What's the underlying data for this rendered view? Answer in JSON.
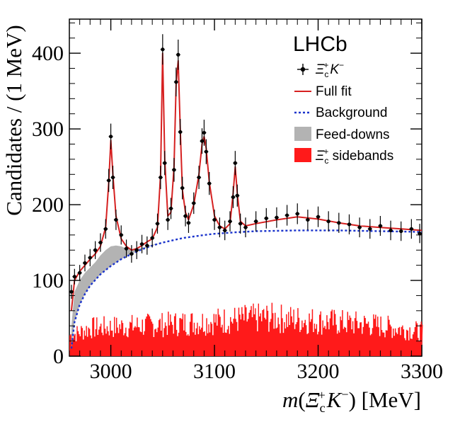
{
  "chart_data": {
    "type": "line",
    "experiment_label": "LHCb",
    "xlabel": "m(Ξ_c^+ K^−) [MeV]",
    "xlabel_parts": [
      "m(",
      "Ξ",
      "c",
      "+",
      "K",
      "−",
      ") [MeV]"
    ],
    "ylabel": "Candidates / (1 MeV)",
    "xlim": [
      2960,
      3300
    ],
    "ylim": [
      0,
      445
    ],
    "xticks": [
      3000,
      3100,
      3200,
      3300
    ],
    "yticks": [
      0,
      100,
      200,
      300,
      400
    ],
    "legend_position": "top-right",
    "legend": [
      {
        "key": "data",
        "label": "Ξ_c^+ K^−",
        "parts": [
          "Ξ",
          "c",
          "+",
          "K",
          "−"
        ],
        "style": "points",
        "color": "#000000"
      },
      {
        "key": "full_fit",
        "label": "Full fit",
        "style": "solid-line",
        "color": "#d62020"
      },
      {
        "key": "background",
        "label": "Background",
        "style": "dotted-line",
        "color": "#1a33cc"
      },
      {
        "key": "feed_downs",
        "label": "Feed-downs",
        "style": "fill",
        "color": "#b3b3b3"
      },
      {
        "key": "sidebands",
        "label": "Ξ_c^+ sidebands",
        "parts": [
          "Ξ",
          "c",
          "+",
          " sidebands"
        ],
        "style": "fill",
        "color": "#ff1a1a"
      }
    ],
    "series": [
      {
        "key": "background",
        "x": [
          2962,
          2965,
          2970,
          2975,
          2980,
          2990,
          3000,
          3010,
          3020,
          3030,
          3040,
          3050,
          3060,
          3070,
          3080,
          3090,
          3100,
          3110,
          3120,
          3140,
          3160,
          3180,
          3200,
          3220,
          3240,
          3260,
          3280,
          3300
        ],
        "y": [
          10,
          45,
          68,
          82,
          93,
          108,
          119,
          128,
          135,
          141,
          146,
          150,
          153,
          156,
          158,
          160,
          161.5,
          162.5,
          163.5,
          165,
          165.5,
          166,
          166,
          166,
          165.5,
          165,
          164.5,
          164
        ]
      },
      {
        "key": "full_fit",
        "x": [
          2962,
          2965,
          2970,
          2975,
          2980,
          2985,
          2990,
          2995,
          2998,
          3000,
          3002,
          3005,
          3010,
          3015,
          3020,
          3025,
          3030,
          3035,
          3040,
          3045,
          3048,
          3050,
          3052,
          3055,
          3058,
          3061,
          3063,
          3065,
          3067,
          3069,
          3072,
          3075,
          3080,
          3085,
          3088,
          3090,
          3092,
          3095,
          3100,
          3105,
          3110,
          3115,
          3118,
          3120,
          3122,
          3125,
          3130,
          3140,
          3160,
          3180,
          3200,
          3220,
          3240,
          3260,
          3280,
          3300
        ],
        "y": [
          60,
          100,
          112,
          120,
          128,
          135,
          145,
          170,
          230,
          285,
          240,
          185,
          155,
          145,
          140,
          142,
          146,
          151,
          155,
          170,
          240,
          400,
          260,
          185,
          190,
          250,
          360,
          390,
          300,
          220,
          190,
          180,
          200,
          240,
          280,
          290,
          275,
          230,
          185,
          172,
          168,
          175,
          215,
          250,
          215,
          178,
          172,
          175,
          180,
          184,
          181,
          176,
          172,
          170,
          168,
          166
        ]
      },
      {
        "key": "feed_downs",
        "x": [
          2962,
          2965,
          2970,
          2975,
          2980,
          2985,
          2990,
          2995,
          3000,
          3005,
          3010,
          3015,
          3020,
          3025,
          3030,
          3040,
          3050,
          3060
        ],
        "y": [
          40,
          85,
          100,
          110,
          117,
          124,
          133,
          140,
          145,
          146,
          145,
          142,
          140,
          141,
          143,
          147,
          150,
          153
        ]
      }
    ],
    "data_points": {
      "key": "data",
      "x": [
        2962,
        2965,
        2970,
        2975,
        2980,
        2985,
        2990,
        2995,
        2998,
        3000,
        3002,
        3005,
        3010,
        3015,
        3020,
        3025,
        3030,
        3035,
        3040,
        3045,
        3048,
        3050,
        3052,
        3055,
        3058,
        3061,
        3063,
        3065,
        3067,
        3069,
        3072,
        3075,
        3080,
        3085,
        3088,
        3090,
        3092,
        3095,
        3100,
        3105,
        3110,
        3115,
        3118,
        3120,
        3122,
        3125,
        3130,
        3140,
        3150,
        3160,
        3170,
        3180,
        3190,
        3200,
        3210,
        3220,
        3230,
        3240,
        3250,
        3260,
        3270,
        3280,
        3290,
        3298
      ],
      "y": [
        85,
        105,
        110,
        123,
        130,
        140,
        150,
        168,
        232,
        290,
        236,
        180,
        160,
        142,
        135,
        140,
        148,
        146,
        156,
        175,
        236,
        405,
        255,
        180,
        195,
        246,
        362,
        398,
        296,
        222,
        185,
        176,
        202,
        236,
        284,
        295,
        270,
        228,
        180,
        170,
        166,
        178,
        210,
        255,
        212,
        175,
        170,
        178,
        182,
        183,
        186,
        188,
        180,
        184,
        178,
        176,
        174,
        170,
        168,
        172,
        166,
        165,
        168,
        162
      ],
      "error": 14
    },
    "sidebands": {
      "key": "sidebands",
      "x_start": 2960,
      "x_end": 3300,
      "typical_values": [
        30,
        40,
        45,
        50,
        55,
        45,
        35
      ],
      "typical_values_x": [
        2962,
        2980,
        3050,
        3100,
        3150,
        3250,
        3300
      ]
    }
  }
}
